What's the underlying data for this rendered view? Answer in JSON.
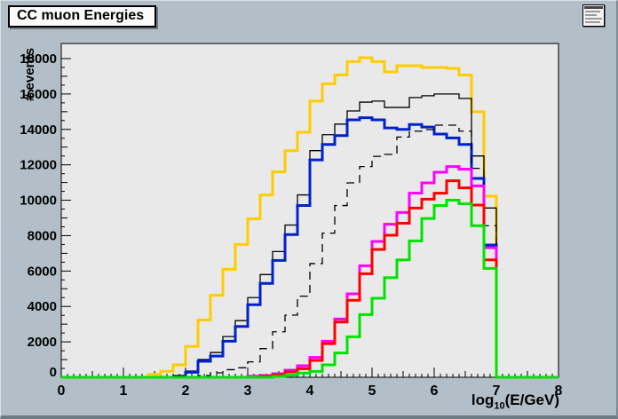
{
  "window": {
    "title": "CC muon Energies"
  },
  "canvas": {
    "background": "#b2bfc8",
    "plot_background": "#e9e9e9",
    "frame_color": "#000000"
  },
  "icons": {
    "corner_panel": "mini-window-icon"
  },
  "chart_data": {
    "type": "line",
    "style": "step-histogram",
    "title": "CC muon Energies",
    "xlabel": "log10(E/GeV)",
    "xlabel_parts": {
      "main": "log",
      "sub": "10",
      "rest": "(E/GeV)"
    },
    "ylabel": "# events",
    "xlim": [
      0,
      8
    ],
    "ylim": [
      0,
      18000
    ],
    "grid": false,
    "legend": null,
    "x_tick_labels": [
      "0",
      "1",
      "2",
      "3",
      "4",
      "5",
      "6",
      "7",
      "8"
    ],
    "y_tick_labels": [
      "0",
      "2000",
      "4000",
      "6000",
      "8000",
      "10000",
      "12000",
      "14000",
      "16000",
      "18000"
    ],
    "x_major_tick_step": 1,
    "x_medium_tick_step": 0.5,
    "x_minor_tick_step": 0.1,
    "y_major_tick_step": 2000,
    "y_medium_tick_step": 1000,
    "y_minor_tick_step": 500,
    "bin_start": 0,
    "bin_width": 0.2,
    "series": [
      {
        "name": "yellow-hist",
        "color": "#ffcc00",
        "line_width": 3,
        "dash": "",
        "values": [
          0,
          0,
          0,
          0,
          0,
          0,
          0,
          160,
          340,
          700,
          1740,
          3240,
          4630,
          6100,
          7500,
          8950,
          10300,
          11600,
          12800,
          13840,
          15600,
          16580,
          17080,
          17830,
          18050,
          17830,
          17250,
          17600,
          17600,
          17500,
          17500,
          17450,
          17070,
          15000,
          10230,
          0,
          0,
          0,
          0,
          0
        ]
      },
      {
        "name": "black-solid-hist",
        "color": "#000000",
        "line_width": 1.3,
        "dash": "",
        "values": [
          0,
          0,
          0,
          0,
          0,
          0,
          0,
          0,
          0,
          100,
          350,
          1000,
          1400,
          2300,
          3200,
          4500,
          5800,
          7100,
          8600,
          10300,
          12800,
          13700,
          14300,
          15040,
          15540,
          15600,
          15240,
          15240,
          15800,
          15900,
          16000,
          16000,
          15750,
          12500,
          9560,
          0,
          0,
          0,
          0,
          0
        ]
      },
      {
        "name": "blue-hist",
        "color": "#0022cc",
        "line_width": 3,
        "dash": "",
        "values": [
          0,
          0,
          0,
          0,
          0,
          0,
          0,
          0,
          0,
          0,
          285,
          900,
          1200,
          2040,
          2870,
          4100,
          5300,
          6600,
          8060,
          9700,
          12280,
          13150,
          13650,
          14540,
          14660,
          14540,
          14080,
          14000,
          14280,
          14130,
          13740,
          13520,
          13150,
          11230,
          7470,
          0,
          0,
          0,
          0,
          0
        ]
      },
      {
        "name": "black-dashed-hist",
        "color": "#000000",
        "line_width": 1.3,
        "dash": "9,6",
        "values": [
          0,
          0,
          0,
          0,
          0,
          0,
          0,
          0,
          0,
          0,
          0,
          100,
          250,
          430,
          535,
          870,
          1620,
          2570,
          3510,
          4580,
          6420,
          8140,
          9700,
          10980,
          11900,
          12480,
          12590,
          13570,
          13900,
          13990,
          14240,
          14240,
          13900,
          11800,
          8560,
          0,
          0,
          0,
          0,
          0
        ]
      },
      {
        "name": "magenta-hist",
        "color": "#ff00ff",
        "line_width": 3,
        "dash": "",
        "values": [
          0,
          0,
          0,
          0,
          0,
          0,
          0,
          0,
          0,
          0,
          0,
          0,
          0,
          0,
          0,
          65,
          100,
          200,
          400,
          650,
          1120,
          2040,
          3290,
          4710,
          6300,
          7670,
          8640,
          9310,
          10400,
          10980,
          11580,
          11900,
          11750,
          10810,
          7320,
          0,
          0,
          0,
          0,
          0
        ]
      },
      {
        "name": "red-hist",
        "color": "#ff0000",
        "line_width": 3,
        "dash": "",
        "values": [
          0,
          0,
          0,
          0,
          0,
          0,
          0,
          0,
          0,
          0,
          0,
          0,
          0,
          0,
          0,
          0,
          60,
          140,
          300,
          485,
          950,
          1900,
          3120,
          4350,
          5850,
          7220,
          8020,
          8700,
          9560,
          10060,
          10400,
          11100,
          10700,
          9730,
          6630,
          0,
          0,
          0,
          0,
          0
        ]
      },
      {
        "name": "green-hist",
        "color": "#00e300",
        "line_width": 3,
        "dash": "",
        "values": [
          0,
          0,
          0,
          0,
          0,
          0,
          0,
          0,
          0,
          0,
          0,
          0,
          0,
          0,
          0,
          0,
          0,
          50,
          120,
          240,
          335,
          700,
          1370,
          2290,
          3540,
          4460,
          5630,
          6630,
          7700,
          8970,
          9700,
          10000,
          9800,
          8560,
          6150,
          0,
          0,
          0,
          0,
          0
        ]
      }
    ]
  }
}
